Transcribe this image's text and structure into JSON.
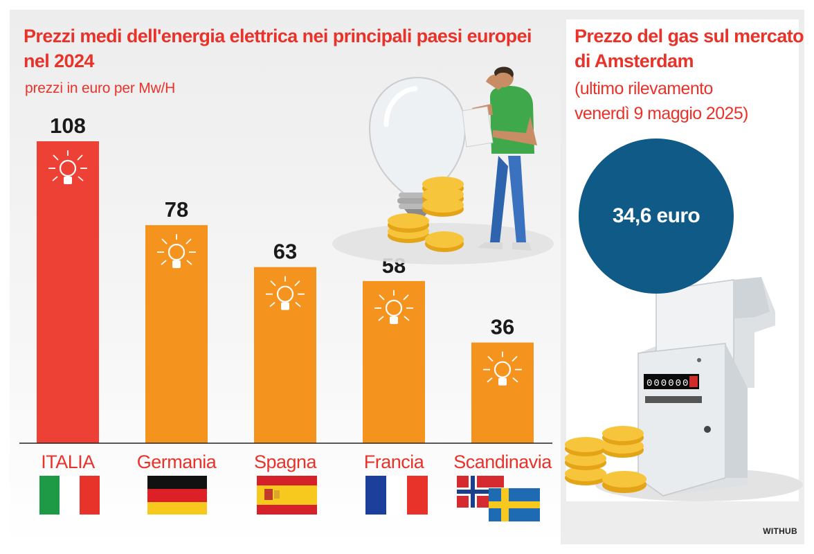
{
  "colors": {
    "accent_red": "#e8332a",
    "bar_highlight": "#ee4135",
    "bar_default": "#f5931f",
    "gas_circle": "#0f5a86"
  },
  "left": {
    "title_line1": "Prezzi medi dell'energia elettrica nei principali paesi europei",
    "title_line2": "nel 2024",
    "subtitle": "prezzi in euro per Mw/H"
  },
  "right": {
    "title_line1": "Prezzo del gas sul mercato",
    "title_line2": "di Amsterdam",
    "sub_line1": "(ultimo rilevamento",
    "sub_line2": "venerdì 9 maggio 2025)",
    "gas_value": "34,6 euro",
    "meter_digits": "000000"
  },
  "credit": "WITHUB",
  "chart_data": {
    "type": "bar",
    "title": "Prezzi medi dell'energia elettrica nei principali paesi europei nel 2024",
    "subtitle": "prezzi in euro per Mw/H",
    "categories": [
      "ITALIA",
      "Germania",
      "Spagna",
      "Francia",
      "Scandinavia"
    ],
    "values": [
      108,
      78,
      63,
      58,
      36
    ],
    "value_labels": [
      "108",
      "78",
      "63",
      "58",
      "36"
    ],
    "highlight_index": 0,
    "ylim": [
      0,
      108
    ],
    "grid": false,
    "flags": [
      "italy",
      "germany",
      "spain",
      "france",
      "norway+sweden"
    ]
  }
}
